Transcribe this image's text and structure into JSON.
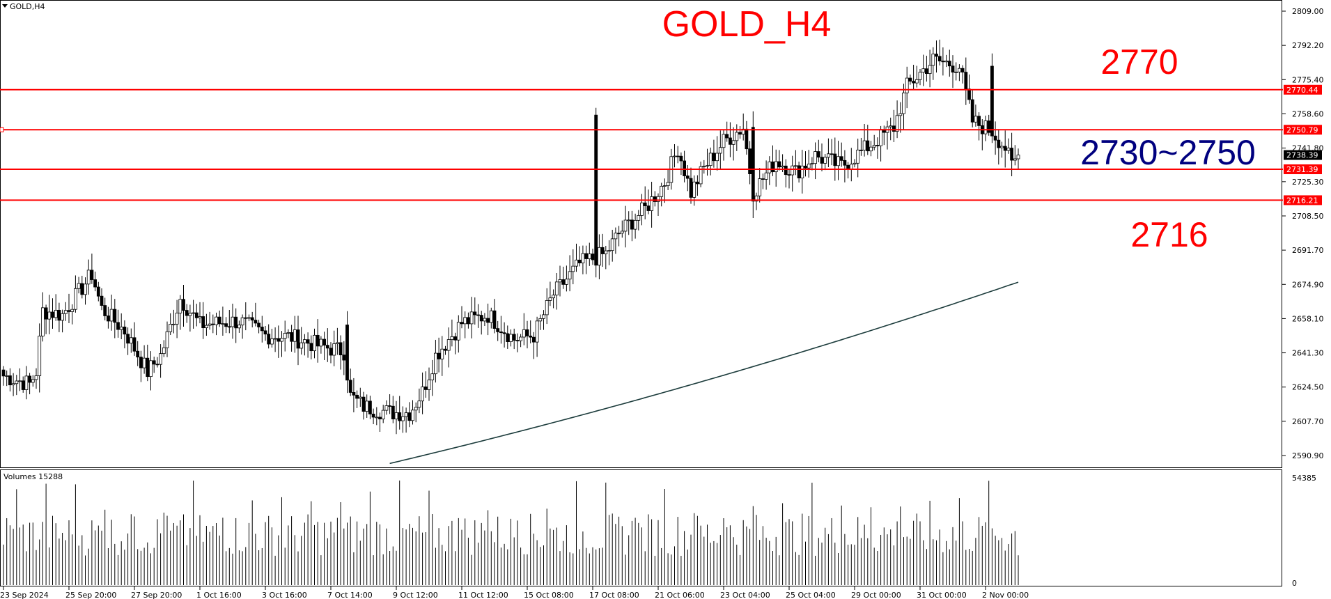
{
  "header": {
    "symbol_label": "GOLD,H4",
    "volumes_label": "Volumes 15288"
  },
  "title": "GOLD_H4",
  "colors": {
    "level_line": "#ff0000",
    "ma_line": "#1c3c3c",
    "candle_bull_fill": "#ffffff",
    "candle_bear_fill": "#000000",
    "volume_bar": "#000000",
    "annotation_red": "#ff0000",
    "annotation_blue": "#00007f"
  },
  "annotations": [
    {
      "text": "2770",
      "color": "red"
    },
    {
      "text": "2730~2750",
      "color": "blue"
    },
    {
      "text": "2716",
      "color": "red"
    }
  ],
  "chart_data": {
    "type": "candlestick",
    "title": "GOLD_H4",
    "y_range": [
      2582,
      2815
    ],
    "price_ticks": [
      2809.0,
      2792.2,
      2775.4,
      2758.6,
      2741.8,
      2725.3,
      2708.5,
      2691.7,
      2674.9,
      2658.1,
      2641.3,
      2624.5,
      2607.7,
      2590.9
    ],
    "price_tick_labels": [
      "2809.00",
      "2792.20",
      "2775.40",
      "2758.60",
      "2741.80",
      "2725.30",
      "2708.50",
      "2691.70",
      "2674.90",
      "2658.10",
      "2641.30",
      "2624.50",
      "2607.70",
      "2590.90"
    ],
    "current_price": {
      "value": 2738.39,
      "label": "2738.39"
    },
    "levels": [
      {
        "value": 2770.44,
        "label": "2770.44"
      },
      {
        "value": 2750.79,
        "label": "2750.79"
      },
      {
        "value": 2731.39,
        "label": "2731.39"
      },
      {
        "value": 2716.21,
        "label": "2716.21"
      }
    ],
    "x_labels": [
      "23 Sep 2024",
      "25 Sep 20:00",
      "27 Sep 20:00",
      "1 Oct 16:00",
      "3 Oct 16:00",
      "7 Oct 14:00",
      "9 Oct 12:00",
      "11 Oct 12:00",
      "15 Oct 08:00",
      "17 Oct 08:00",
      "21 Oct 06:00",
      "23 Oct 04:00",
      "25 Oct 04:00",
      "29 Oct 00:00",
      "31 Oct 00:00",
      "2 Nov 00:00"
    ],
    "price_anchors": [
      [
        0,
        2630
      ],
      [
        8,
        2626
      ],
      [
        10,
        2632
      ],
      [
        12,
        2662
      ],
      [
        18,
        2660
      ],
      [
        27,
        2680
      ],
      [
        30,
        2663
      ],
      [
        37,
        2652
      ],
      [
        44,
        2632
      ],
      [
        48,
        2640
      ],
      [
        54,
        2668
      ],
      [
        60,
        2655
      ],
      [
        72,
        2657
      ],
      [
        80,
        2650
      ],
      [
        88,
        2649
      ],
      [
        96,
        2645
      ],
      [
        104,
        2642
      ],
      [
        106,
        2620
      ],
      [
        110,
        2615
      ],
      [
        118,
        2612
      ],
      [
        124,
        2612
      ],
      [
        128,
        2622
      ],
      [
        132,
        2640
      ],
      [
        140,
        2656
      ],
      [
        148,
        2660
      ],
      [
        156,
        2648
      ],
      [
        162,
        2650
      ],
      [
        168,
        2670
      ],
      [
        176,
        2685
      ],
      [
        184,
        2690
      ],
      [
        188,
        2700
      ],
      [
        196,
        2712
      ],
      [
        202,
        2725
      ],
      [
        206,
        2742
      ],
      [
        210,
        2720
      ],
      [
        214,
        2732
      ],
      [
        220,
        2745
      ],
      [
        226,
        2752
      ],
      [
        229,
        2720
      ],
      [
        236,
        2736
      ],
      [
        242,
        2730
      ],
      [
        248,
        2738
      ],
      [
        256,
        2733
      ],
      [
        262,
        2740
      ],
      [
        272,
        2752
      ],
      [
        276,
        2772
      ],
      [
        284,
        2785
      ],
      [
        292,
        2782
      ],
      [
        296,
        2755
      ],
      [
        302,
        2750
      ],
      [
        306,
        2742
      ],
      [
        308,
        2733
      ],
      [
        310,
        2738
      ]
    ],
    "moving_average": {
      "start_index": 118,
      "start_value": 2587,
      "end_index": 310,
      "end_value": 2676
    },
    "volume": {
      "axis_max": 54385,
      "axis_labels": [
        "54385",
        "0"
      ],
      "typical_range": [
        15000,
        54385
      ],
      "last_value": 15288
    }
  }
}
